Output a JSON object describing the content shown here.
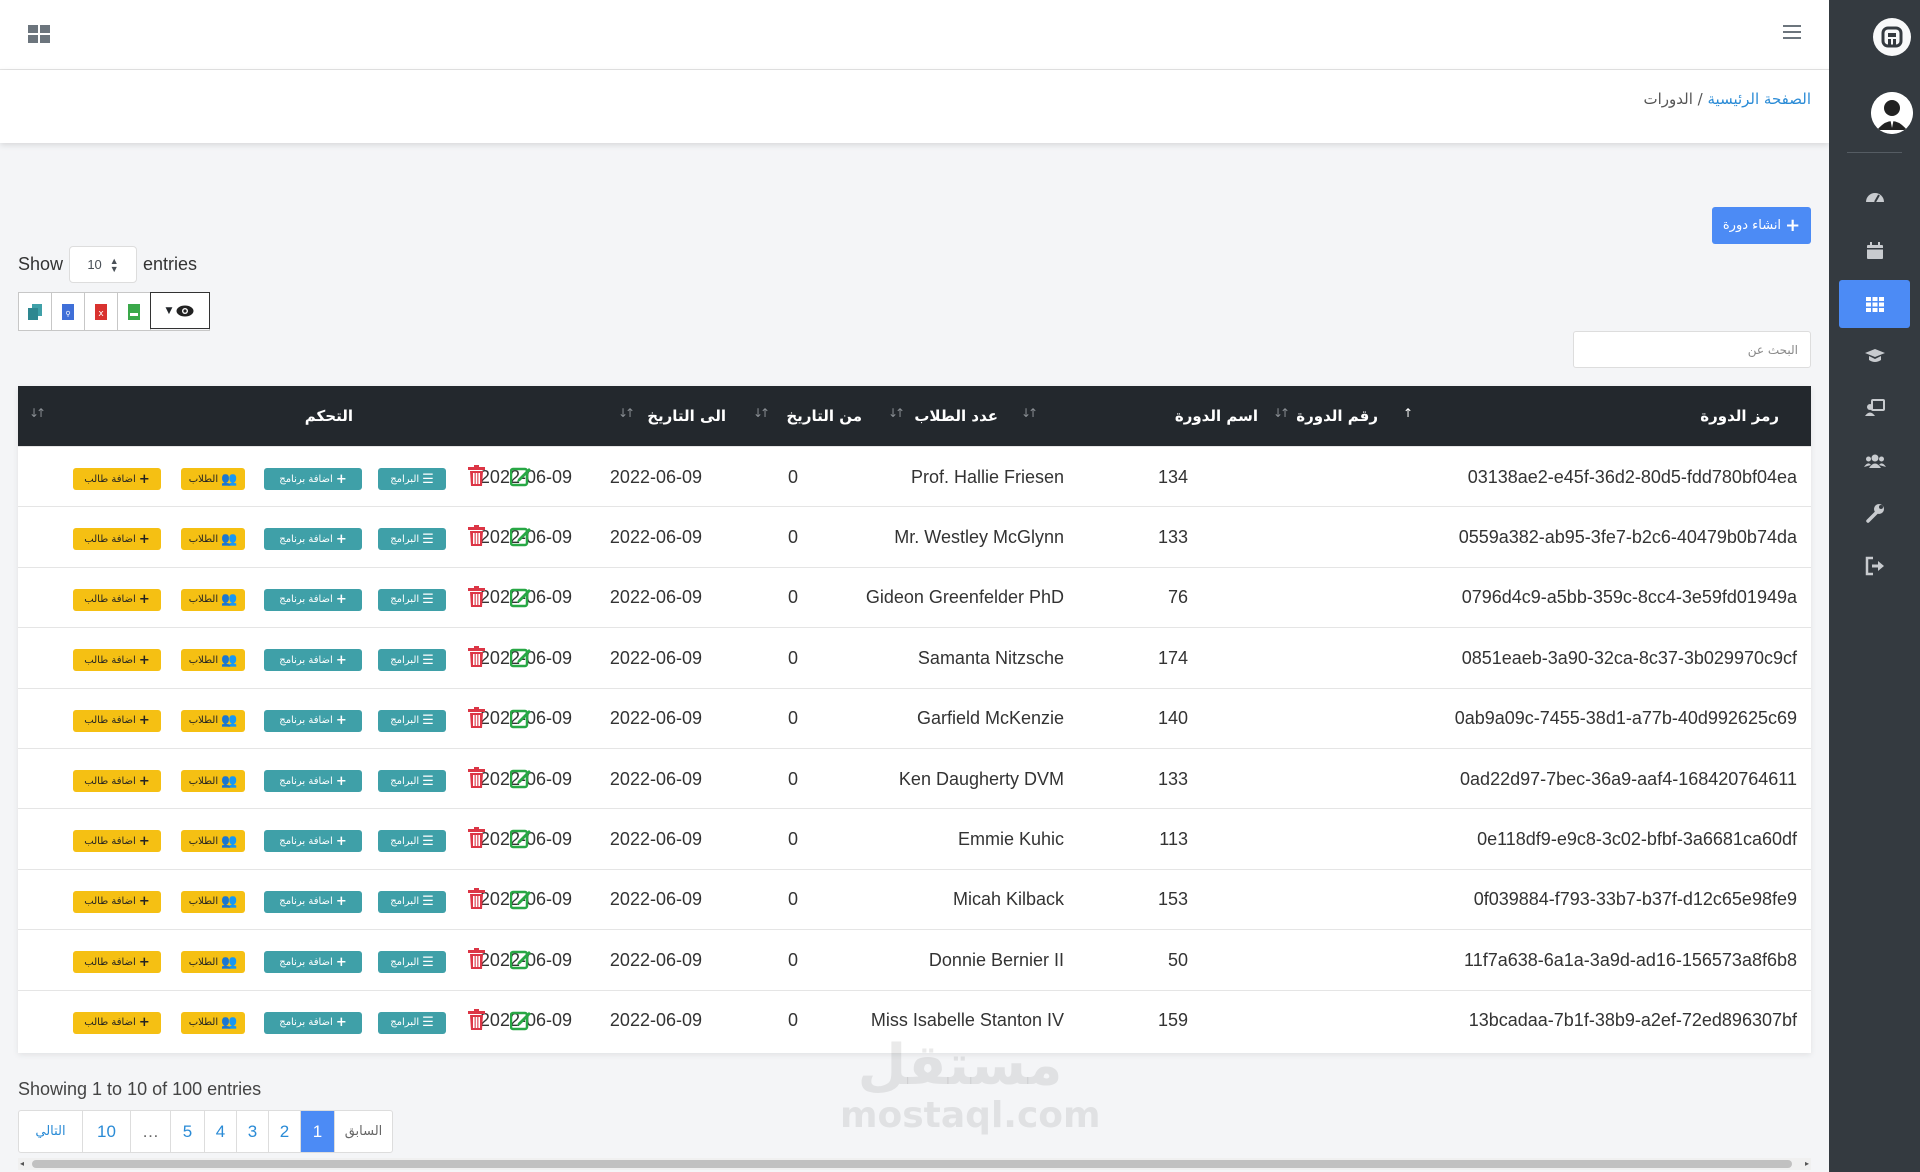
{
  "breadcrumb": {
    "home": "الصفحة الرئيسية",
    "separator": "/",
    "current": "الدورات"
  },
  "create_button": "انشاء دورة",
  "length": {
    "show": "Show",
    "value": "10",
    "entries": "entries"
  },
  "search": {
    "placeholder": "البحث عن"
  },
  "export_buttons": [
    "copy-icon",
    "pdf-icon",
    "excel-icon",
    "csv-icon",
    "eye-icon"
  ],
  "columns": {
    "code": "رمز الدورة",
    "number": "رقم الدورة",
    "name": "اسم الدورة",
    "students": "عدد الطلاب",
    "from": "من التاريخ",
    "to": "الى التاريخ",
    "controls": "التحكم"
  },
  "actions": {
    "programs": "البرامج",
    "add_program": "اضافة برنامج",
    "students": "الطلاب",
    "add_student": "اضافة طالب"
  },
  "rows": [
    {
      "code": "03138ae2-e45f-36d2-80d5-fdd780bf04ea",
      "number": "134",
      "name": "Prof. Hallie Friesen",
      "students": "0",
      "from": "2022-06-09",
      "to": "2022-06-09"
    },
    {
      "code": "0559a382-ab95-3fe7-b2c6-40479b0b74da",
      "number": "133",
      "name": "Mr. Westley McGlynn",
      "students": "0",
      "from": "2022-06-09",
      "to": "2022-06-09"
    },
    {
      "code": "0796d4c9-a5bb-359c-8cc4-3e59fd01949a",
      "number": "76",
      "name": "Gideon Greenfelder PhD",
      "students": "0",
      "from": "2022-06-09",
      "to": "2022-06-09"
    },
    {
      "code": "0851eaeb-3a90-32ca-8c37-3b029970c9cf",
      "number": "174",
      "name": "Samanta Nitzsche",
      "students": "0",
      "from": "2022-06-09",
      "to": "2022-06-09"
    },
    {
      "code": "0ab9a09c-7455-38d1-a77b-40d992625c69",
      "number": "140",
      "name": "Garfield McKenzie",
      "students": "0",
      "from": "2022-06-09",
      "to": "2022-06-09"
    },
    {
      "code": "0ad22d97-7bec-36a9-aaf4-168420764611",
      "number": "133",
      "name": "Ken Daugherty DVM",
      "students": "0",
      "from": "2022-06-09",
      "to": "2022-06-09"
    },
    {
      "code": "0e118df9-e9c8-3c02-bfbf-3a6681ca60df",
      "number": "113",
      "name": "Emmie Kuhic",
      "students": "0",
      "from": "2022-06-09",
      "to": "2022-06-09"
    },
    {
      "code": "0f039884-f793-33b7-b37f-d12c65e98fe9",
      "number": "153",
      "name": "Micah Kilback",
      "students": "0",
      "from": "2022-06-09",
      "to": "2022-06-09"
    },
    {
      "code": "11f7a638-6a1a-3a9d-ad16-156573a8f6b8",
      "number": "50",
      "name": "Donnie Bernier II",
      "students": "0",
      "from": "2022-06-09",
      "to": "2022-06-09"
    },
    {
      "code": "13bcadaa-7b1f-38b9-a2ef-72ed896307bf",
      "number": "159",
      "name": "Miss Isabelle Stanton IV",
      "students": "0",
      "from": "2022-06-09",
      "to": "2022-06-09"
    }
  ],
  "info": "Showing 1 to 10 of 100 entries",
  "pagination": [
    "التالي",
    "10",
    "…",
    "5",
    "4",
    "3",
    "2",
    "1",
    "السابق"
  ],
  "active_page": "1",
  "watermark": {
    "line1": "مستقل",
    "line2": "mostaql.com"
  },
  "sidebar": [
    "dashboard-icon",
    "calendar-icon",
    "grid-icon",
    "graduation-icon",
    "teacher-icon",
    "users-icon",
    "wrench-icon",
    "logout-icon"
  ],
  "colors": {
    "primary": "#4c8bf5",
    "header_dark": "#23282d",
    "sidebar": "#343a40",
    "teal": "#3fa0a8",
    "yellow": "#f5c013",
    "danger": "#dc3545",
    "success": "#28a745"
  }
}
